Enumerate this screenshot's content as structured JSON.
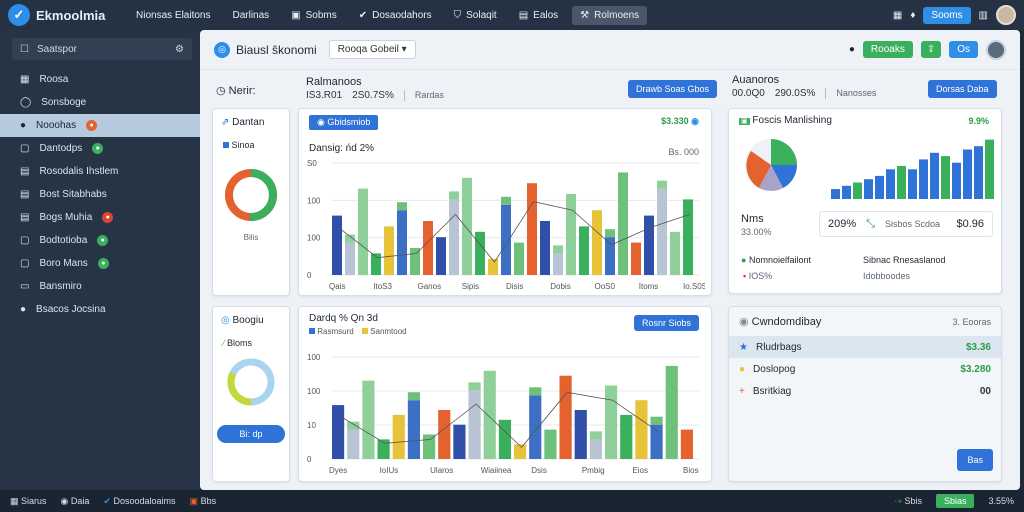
{
  "app": {
    "title": "Ekmoolmia"
  },
  "topnav": {
    "items": [
      "Nionsas Elaitons",
      "Darlinas",
      "Sobms",
      "Dosaodahors",
      "Solaqit",
      "Ealos",
      "Rolmoens"
    ],
    "add_label": "Sooms"
  },
  "sidebar": {
    "search_label": "Saatspor",
    "items": [
      {
        "label": "Roosa",
        "badge": null,
        "icon": "grid-icon"
      },
      {
        "label": "Sonsboge",
        "badge": null,
        "icon": "circle-icon"
      },
      {
        "label": "Nooohas",
        "badge": "orange",
        "icon": "avatar"
      },
      {
        "label": "Dantodps",
        "badge": "green",
        "icon": "square-icon"
      },
      {
        "label": "Rosodalis Ihstlem",
        "badge": null,
        "icon": "table-icon"
      },
      {
        "label": "Bost Sitabhabs",
        "badge": null,
        "icon": "table-icon"
      },
      {
        "label": "Bogs Muhia",
        "badge": "red",
        "icon": "table-icon"
      },
      {
        "label": "Bodtotioba",
        "badge": "green",
        "icon": "square-icon"
      },
      {
        "label": "Boro Mans",
        "badge": "green",
        "icon": "square-icon"
      },
      {
        "label": "Bansmiro",
        "badge": null,
        "icon": "minus-icon"
      },
      {
        "label": "Bsacos Jocsina",
        "badge": null,
        "icon": "avatar"
      }
    ]
  },
  "main": {
    "title": "Biausl ŝkonomi",
    "dropdown": "Rooqa Gobeil",
    "btn1": "Rooaks",
    "btn2": "Os",
    "left_head": "Nerir:",
    "left_card_title": "Dantan",
    "left_card_legend": "Sinoa",
    "left_card_foot": "Bilis",
    "left_card2_title": "Boogiu",
    "left_card2_legend": "Bloms",
    "left_card2_btn": "Bi: dp",
    "center_head": "Ralmanoos",
    "center_stats": [
      "IS3.R01",
      "2S0.7S%",
      "Rardas"
    ],
    "center_btn": "Drawb Soas Gbos",
    "chart1_tab": "Gbidsmiob",
    "chart1_value": "$3.330",
    "chart1_title": "Dansig: ńd 2%",
    "chart1_right": "Bs. 000",
    "chart1_y": [
      "S0",
      "100",
      "100",
      "0"
    ],
    "chart1_x": [
      "Qais",
      "ItoS3",
      "Ganos",
      "Sipis",
      "Disis",
      "Dobis",
      "OoS0",
      "Itoms",
      "Io.S0S"
    ],
    "chart2_title": "Dardq % Qn 3d",
    "chart2_legend": "Rasmsurd",
    "chart2_legend2": "Sanmtood",
    "chart2_btn": "Rosnr Siobs",
    "chart2_y": [
      "100",
      "100",
      "10",
      "0"
    ],
    "chart2_x": [
      "Dyes",
      "IoIUs",
      "Ularos",
      "Wiaiinea",
      "Dsis",
      "Pmbig",
      "Eios",
      "Bios"
    ],
    "right_head": "Auanoros",
    "right_stats": [
      "00.0Q0",
      "290.0S%",
      "Nanosses"
    ],
    "right_btn": "Dorsas Daba",
    "rc_title": "Foscis Manlishing",
    "rc_value": "9.9%",
    "rc_mid": "Nms",
    "rc_mid_sub": "33.00%",
    "rc_stat1": "209%",
    "rc_stat1_sub": "Sisbos Scdoa",
    "rc_stat2": "$0.96",
    "rc_foot1": "Nomnoielfailont",
    "rc_foot1_sub": "IOS%",
    "rc_foot2": "Sibnac Rnesaslanod",
    "rc_foot2_sub": "Idobboodes",
    "tbl_title": "Cwndomdibay",
    "tbl_right": "3. Eooras",
    "tbl_rows": [
      {
        "label": "Rludrbags",
        "value": "$3.36"
      },
      {
        "label": "Doslopog",
        "value": "$3.280"
      },
      {
        "label": "Bsritkiag",
        "value": "00"
      }
    ],
    "tbl_btn": "Bas"
  },
  "status": {
    "items": [
      "Siarus",
      "Daia",
      "Dosoodaloaims",
      "Bbs"
    ],
    "right": [
      "Sbis",
      "Sbias",
      "3.55%"
    ]
  },
  "colors": {
    "accent": "#2f8fe6",
    "green": "#3bb05c",
    "navy": "#243244"
  }
}
